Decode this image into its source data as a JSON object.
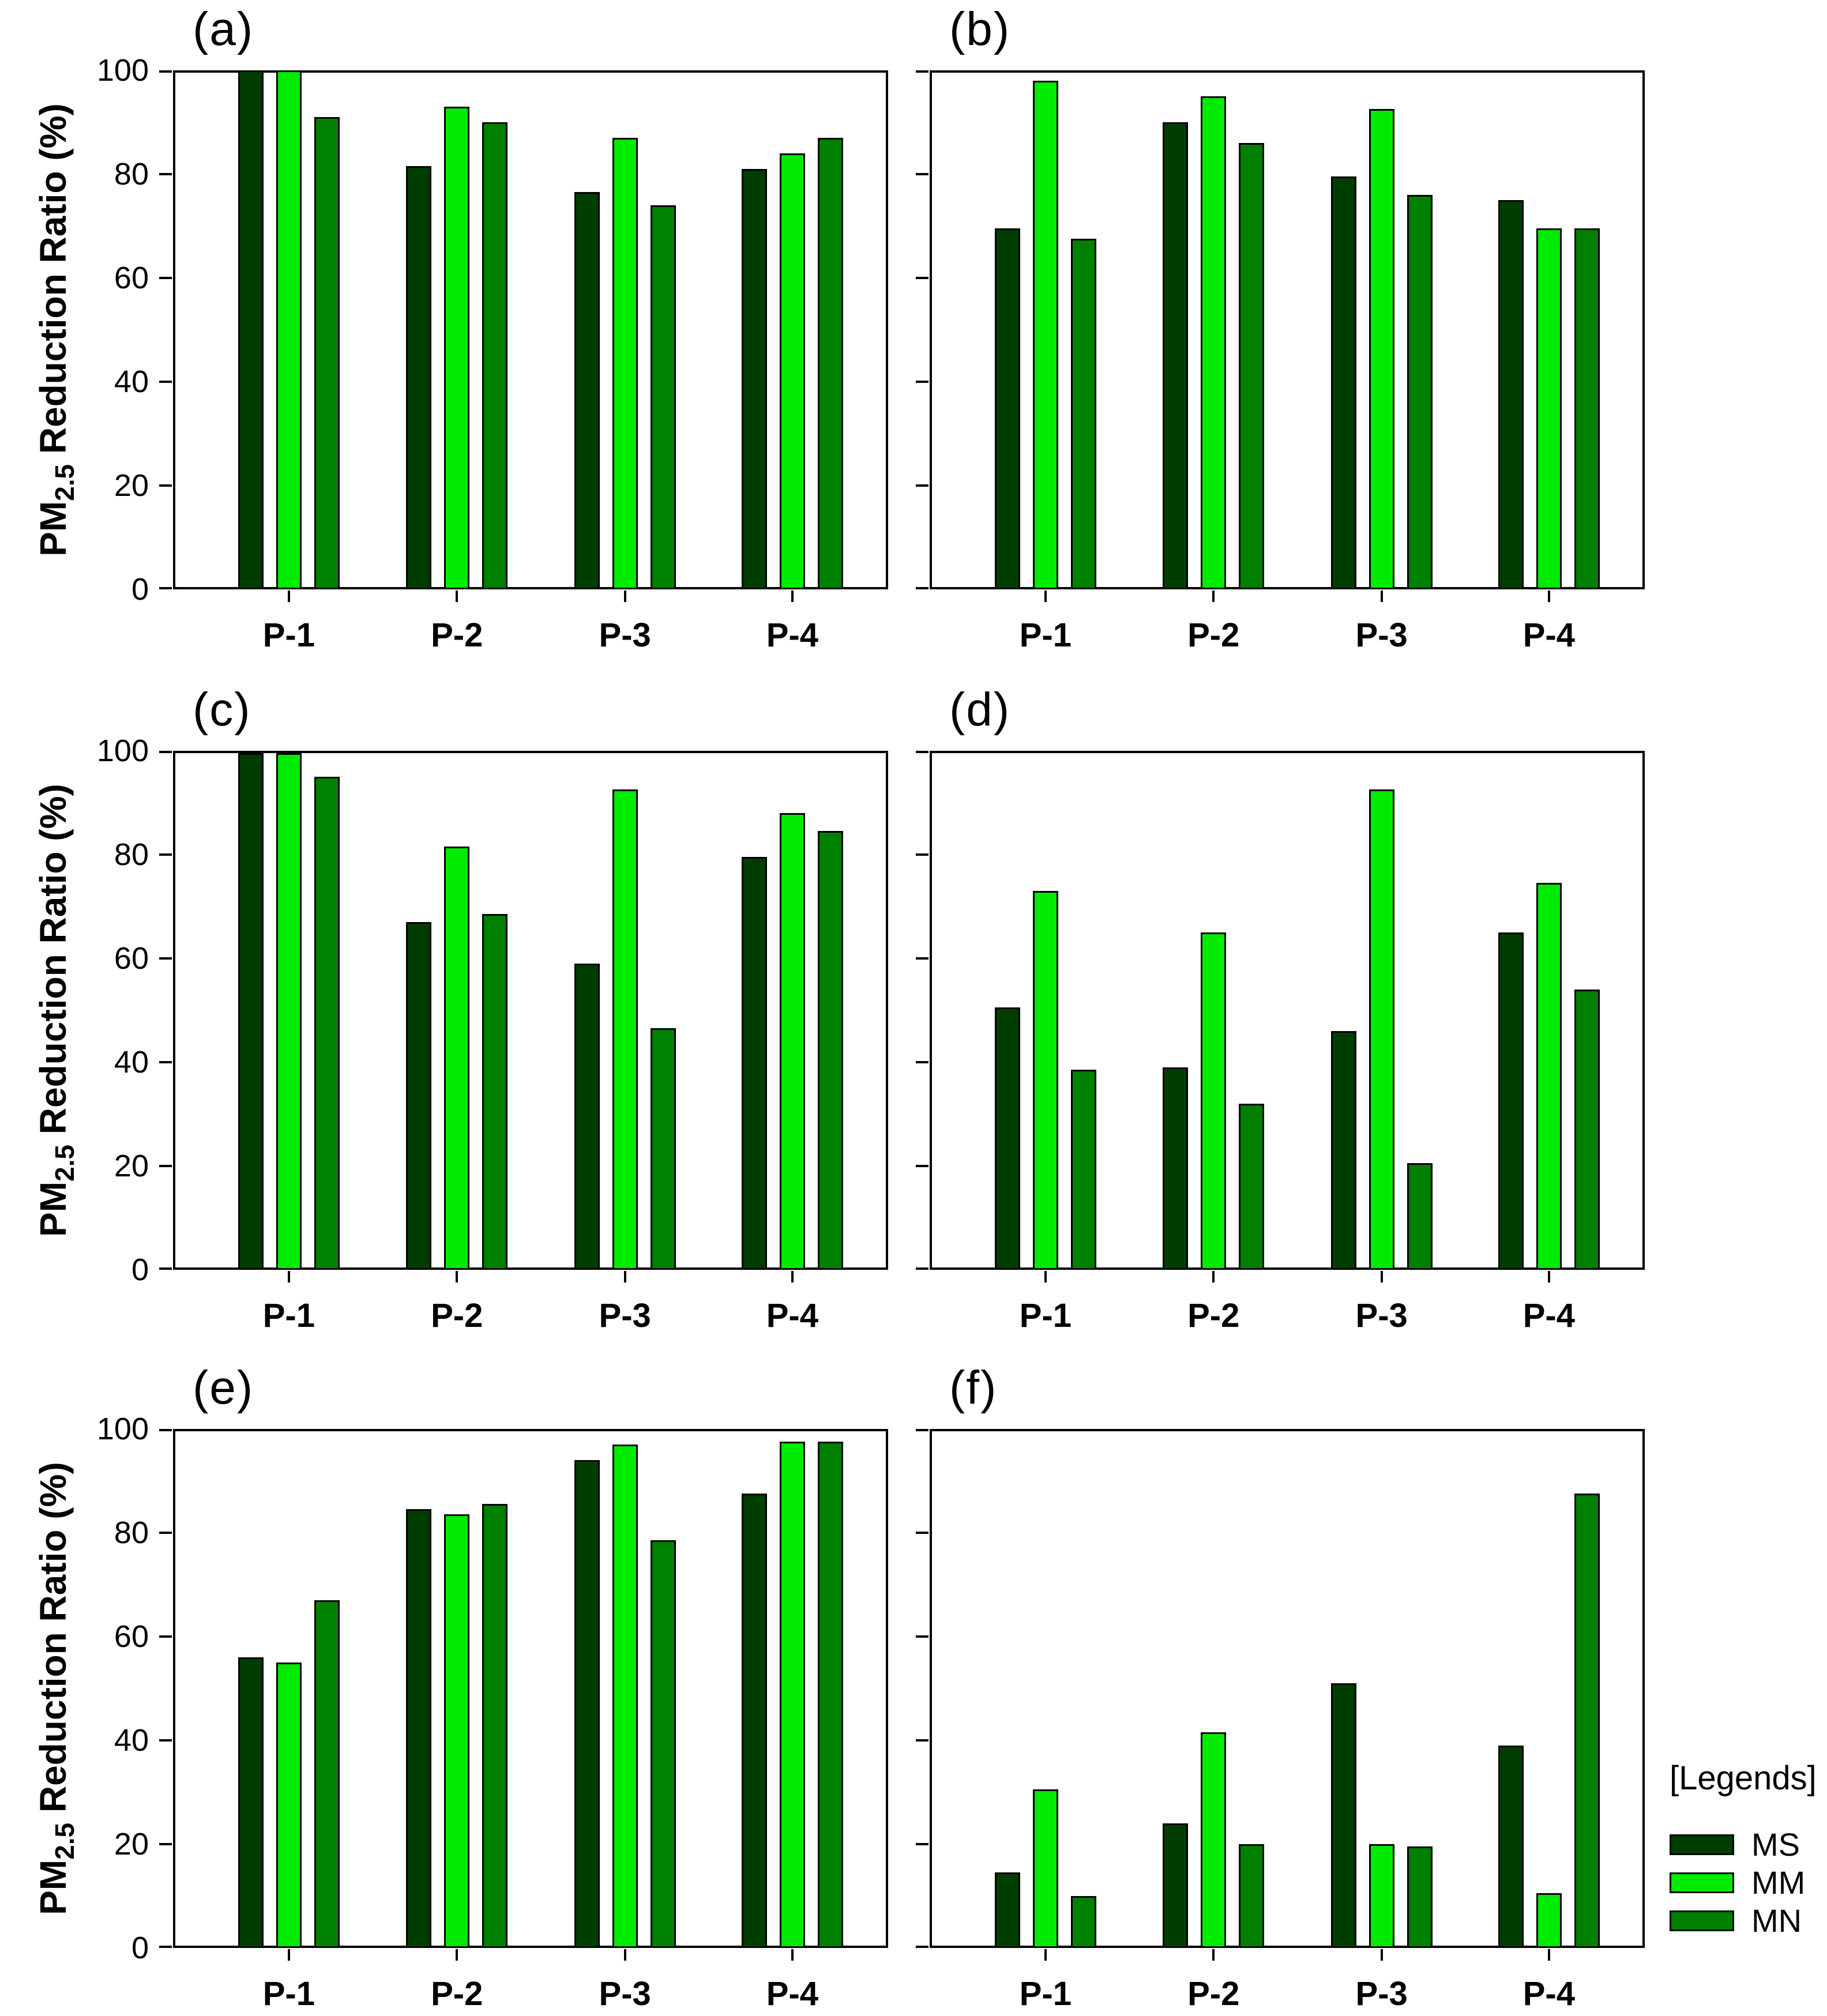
{
  "figure": {
    "y_axis_title": {
      "prefix": "PM",
      "subscript": "2.5",
      "suffix": " Reduction Ratio (%)"
    },
    "x_categories": [
      "P-1",
      "P-2",
      "P-3",
      "P-4"
    ],
    "y_tick_labels": [
      "0",
      "20",
      "40",
      "60",
      "80",
      "100"
    ],
    "series_colors": {
      "MS": "#003D00",
      "MM": "#00EB00",
      "MN": "#008000"
    },
    "bar_border_color": "#000000",
    "frame_color": "#000000",
    "background": "#FFFFFF"
  },
  "legend": {
    "title": "[Legends]",
    "entries": [
      {
        "label": "MS",
        "color": "#003D00"
      },
      {
        "label": "MM",
        "color": "#00EB00"
      },
      {
        "label": "MN",
        "color": "#008000"
      }
    ]
  },
  "chart_data": [
    {
      "type": "bar",
      "panel_label": "(a)",
      "id": "a",
      "title": "",
      "xlabel": "",
      "ylabel": "PM2.5 Reduction Ratio (%)",
      "categories": [
        "P-1",
        "P-2",
        "P-3",
        "P-4"
      ],
      "ylim": [
        0,
        100
      ],
      "y_ticks": [
        0,
        20,
        40,
        60,
        80,
        100
      ],
      "grid": false,
      "show_y_tick_labels": true,
      "series": [
        {
          "name": "MS",
          "values": [
            100,
            81.5,
            76.5,
            81
          ]
        },
        {
          "name": "MM",
          "values": [
            100,
            93,
            87,
            84
          ]
        },
        {
          "name": "MN",
          "values": [
            91,
            90,
            74,
            87
          ]
        }
      ]
    },
    {
      "type": "bar",
      "panel_label": "(b)",
      "id": "b",
      "title": "",
      "xlabel": "",
      "ylabel": "",
      "categories": [
        "P-1",
        "P-2",
        "P-3",
        "P-4"
      ],
      "ylim": [
        0,
        100
      ],
      "y_ticks": [
        0,
        20,
        40,
        60,
        80,
        100
      ],
      "grid": false,
      "show_y_tick_labels": false,
      "series": [
        {
          "name": "MS",
          "values": [
            69.5,
            90,
            79.5,
            75
          ]
        },
        {
          "name": "MM",
          "values": [
            98,
            95,
            92.5,
            69.5
          ]
        },
        {
          "name": "MN",
          "values": [
            67.5,
            86,
            76,
            69.5
          ]
        }
      ]
    },
    {
      "type": "bar",
      "panel_label": "(c)",
      "id": "c",
      "title": "",
      "xlabel": "",
      "ylabel": "PM2.5 Reduction Ratio (%)",
      "categories": [
        "P-1",
        "P-2",
        "P-3",
        "P-4"
      ],
      "ylim": [
        0,
        100
      ],
      "y_ticks": [
        0,
        20,
        40,
        60,
        80,
        100
      ],
      "grid": false,
      "show_y_tick_labels": true,
      "series": [
        {
          "name": "MS",
          "values": [
            99.5,
            67,
            59,
            79.5
          ]
        },
        {
          "name": "MM",
          "values": [
            99.5,
            81.5,
            92.5,
            88
          ]
        },
        {
          "name": "MN",
          "values": [
            95,
            68.5,
            46.5,
            84.5
          ]
        }
      ]
    },
    {
      "type": "bar",
      "panel_label": "(d)",
      "id": "d",
      "title": "",
      "xlabel": "",
      "ylabel": "",
      "categories": [
        "P-1",
        "P-2",
        "P-3",
        "P-4"
      ],
      "ylim": [
        0,
        100
      ],
      "y_ticks": [
        0,
        20,
        40,
        60,
        80,
        100
      ],
      "grid": false,
      "show_y_tick_labels": false,
      "series": [
        {
          "name": "MS",
          "values": [
            50.5,
            39,
            46,
            65
          ]
        },
        {
          "name": "MM",
          "values": [
            73,
            65,
            92.5,
            74.5
          ]
        },
        {
          "name": "MN",
          "values": [
            38.5,
            32,
            20.5,
            54
          ]
        }
      ]
    },
    {
      "type": "bar",
      "panel_label": "(e)",
      "id": "e",
      "title": "",
      "xlabel": "",
      "ylabel": "PM2.5 Reduction Ratio (%)",
      "categories": [
        "P-1",
        "P-2",
        "P-3",
        "P-4"
      ],
      "ylim": [
        0,
        100
      ],
      "y_ticks": [
        0,
        20,
        40,
        60,
        80,
        100
      ],
      "grid": false,
      "show_y_tick_labels": true,
      "series": [
        {
          "name": "MS",
          "values": [
            56,
            84.5,
            94,
            87.5
          ]
        },
        {
          "name": "MM",
          "values": [
            55,
            83.5,
            97,
            97.5
          ]
        },
        {
          "name": "MN",
          "values": [
            67,
            85.5,
            78.5,
            97.5
          ]
        }
      ]
    },
    {
      "type": "bar",
      "panel_label": "(f)",
      "id": "f",
      "title": "",
      "xlabel": "",
      "ylabel": "",
      "categories": [
        "P-1",
        "P-2",
        "P-3",
        "P-4"
      ],
      "ylim": [
        0,
        100
      ],
      "y_ticks": [
        0,
        20,
        40,
        60,
        80,
        100
      ],
      "grid": false,
      "show_y_tick_labels": false,
      "series": [
        {
          "name": "MS",
          "values": [
            14.5,
            24,
            51,
            39
          ]
        },
        {
          "name": "MM",
          "values": [
            30.5,
            41.5,
            20,
            10.5
          ]
        },
        {
          "name": "MN",
          "values": [
            10,
            20,
            19.5,
            87.5
          ]
        }
      ]
    }
  ]
}
